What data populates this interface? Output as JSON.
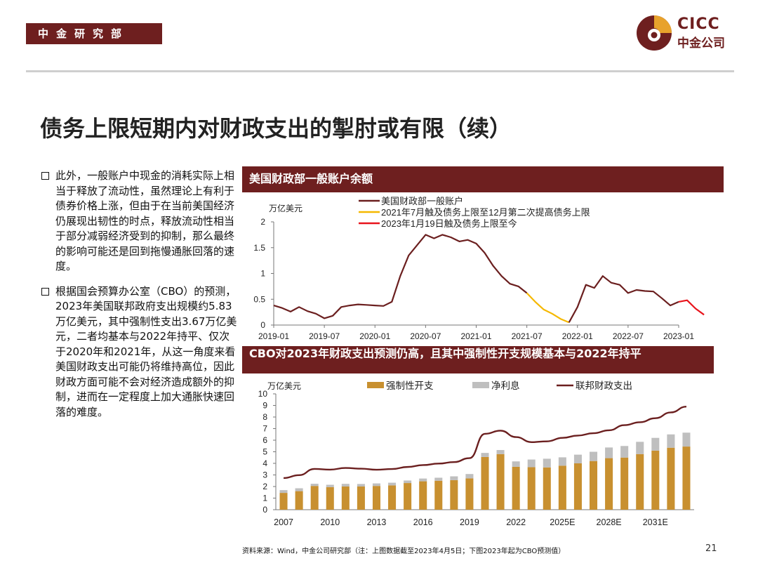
{
  "header": {
    "department_tag": "中金研究部"
  },
  "logo": {
    "en": "CICC",
    "cn": "中金公司"
  },
  "page_title": "债务上限短期内对财政支出的掣肘或有限（续）",
  "bullets": [
    "此外，一般账户中现金的消耗实际上相当于释放了流动性，虽然理论上有利于债券价格上涨，但由于在当前美国经济仍展现出韧性的时点，释放流动性相当于部分减弱经济受到的抑制，那么最终的影响可能还是回到拖慢通胀回落的速度。",
    "根据国会预算办公室（CBO）的预测，2023年美国联邦政府支出规模约5.83万亿美元，其中强制性支出3.67万亿美元，二者均基本与2022年持平、仅次于2020年和2021年，从这一角度来看美国财政支出可能仍将维持高位，因此财政方面可能不会对经济造成额外的抑制，进而在一定程度上加大通胀快速回落的难度。"
  ],
  "chart_data": [
    {
      "type": "line",
      "title": "美国财政部一般账户余额",
      "ylabel": "万亿美元",
      "ylim": [
        0,
        2
      ],
      "yticks": [
        "0",
        "0.5",
        "1",
        "1.5",
        "2"
      ],
      "xticks": [
        "2019-01",
        "2019-07",
        "2020-01",
        "2020-07",
        "2021-01",
        "2021-07",
        "2022-01",
        "2022-07",
        "2023-01"
      ],
      "colors": {
        "main": "#6b1f1f",
        "debt_ceiling_2021": "#f5b800",
        "debt_ceiling_2023": "#e8141c"
      },
      "series": [
        {
          "name": "美国财政部一般账户",
          "x": [
            "2019-01",
            "2019-02",
            "2019-03",
            "2019-04",
            "2019-05",
            "2019-06",
            "2019-07",
            "2019-08",
            "2019-09",
            "2019-10",
            "2019-11",
            "2019-12",
            "2020-01",
            "2020-02",
            "2020-03",
            "2020-04",
            "2020-05",
            "2020-06",
            "2020-07",
            "2020-08",
            "2020-09",
            "2020-10",
            "2020-11",
            "2020-12",
            "2021-01",
            "2021-02",
            "2021-03",
            "2021-04",
            "2021-05",
            "2021-06",
            "2021-07"
          ],
          "values": [
            0.38,
            0.33,
            0.26,
            0.35,
            0.27,
            0.22,
            0.13,
            0.18,
            0.35,
            0.38,
            0.4,
            0.39,
            0.38,
            0.37,
            0.45,
            0.95,
            1.35,
            1.55,
            1.75,
            1.68,
            1.75,
            1.7,
            1.62,
            1.65,
            1.58,
            1.4,
            1.15,
            0.95,
            0.8,
            0.75,
            0.62
          ]
        },
        {
          "name": "2021年7月触及债务上限至12月第二次提高债务上限",
          "x": [
            "2021-07",
            "2021-08",
            "2021-09",
            "2021-10",
            "2021-11",
            "2021-12"
          ],
          "values": [
            0.62,
            0.45,
            0.3,
            0.22,
            0.12,
            0.05
          ]
        },
        {
          "name": "",
          "x": [
            "2021-12",
            "2022-01",
            "2022-02",
            "2022-03",
            "2022-04",
            "2022-05",
            "2022-06",
            "2022-07",
            "2022-08",
            "2022-09",
            "2022-10",
            "2022-11",
            "2022-12",
            "2023-01"
          ],
          "values": [
            0.05,
            0.35,
            0.78,
            0.72,
            0.95,
            0.82,
            0.78,
            0.62,
            0.68,
            0.66,
            0.65,
            0.52,
            0.38,
            0.45
          ]
        },
        {
          "name": "2023年1月19日触及债务上限至今",
          "x": [
            "2023-01",
            "2023-02",
            "2023-03",
            "2023-04"
          ],
          "values": [
            0.45,
            0.48,
            0.32,
            0.2
          ]
        }
      ]
    },
    {
      "type": "bar",
      "title": "CBO对2023年财政支出预测仍高，且其中强制性开支规模基本与2022年持平",
      "ylabel": "万亿美元",
      "ylim": [
        0,
        10
      ],
      "yticks": [
        "0",
        "1",
        "2",
        "3",
        "4",
        "5",
        "6",
        "7",
        "8",
        "9",
        "10"
      ],
      "categories": [
        "2007",
        "2008",
        "2009",
        "2010",
        "2011",
        "2012",
        "2013",
        "2014",
        "2015",
        "2016",
        "2017",
        "2018",
        "2019",
        "2020",
        "2021",
        "2022",
        "2023E",
        "2024E",
        "2025E",
        "2026E",
        "2027E",
        "2028E",
        "2029E",
        "2030E",
        "2031E",
        "2032E",
        "2033E"
      ],
      "xtick_labels": [
        "2007",
        "2010",
        "2013",
        "2016",
        "2019",
        "2022",
        "2025E",
        "2028E",
        "2031E"
      ],
      "colors": {
        "mandatory": "#c89030",
        "net_interest": "#bfbfbf",
        "federal_outlays": "#6b1f1f"
      },
      "series": [
        {
          "name": "强制性开支",
          "values": [
            1.45,
            1.6,
            2.05,
            1.95,
            2.0,
            2.0,
            2.05,
            2.1,
            2.3,
            2.45,
            2.5,
            2.55,
            2.7,
            4.55,
            4.8,
            3.7,
            3.67,
            3.65,
            3.8,
            4.0,
            4.2,
            4.45,
            4.5,
            4.8,
            5.1,
            5.35,
            5.45
          ]
        },
        {
          "name": "净利息",
          "values": [
            0.24,
            0.25,
            0.19,
            0.2,
            0.23,
            0.22,
            0.22,
            0.23,
            0.22,
            0.24,
            0.26,
            0.33,
            0.38,
            0.35,
            0.35,
            0.47,
            0.66,
            0.75,
            0.72,
            0.75,
            0.8,
            0.92,
            1.0,
            1.06,
            1.1,
            1.15,
            1.2
          ]
        },
        {
          "name": "联邦财政支出",
          "values": [
            2.73,
            2.98,
            3.52,
            3.46,
            3.6,
            3.54,
            3.45,
            3.51,
            3.69,
            3.85,
            3.98,
            4.11,
            4.45,
            6.55,
            6.82,
            6.27,
            5.83,
            5.9,
            6.2,
            6.4,
            6.6,
            6.85,
            7.3,
            7.55,
            7.9,
            8.4,
            8.9
          ]
        }
      ]
    }
  ],
  "footer": {
    "source": "资料来源：Wind，中金公司研究部（注：上图数据截至2023年4月5日；下图2023年起为CBO预测值）",
    "page_number": "21"
  }
}
